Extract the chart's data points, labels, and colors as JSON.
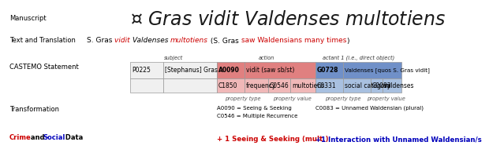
{
  "bg_color": "#ffffff",
  "manuscript_label": "Manuscript",
  "text_translation_label": "Text and Translation",
  "castemo_label": "CASTEMO Statement",
  "transformation_label": "Transformation",
  "crime_social_label": "Crime and Social Data",
  "latin_text_parts": [
    {
      "text": "S. Gras ",
      "color": "#000000",
      "style": "normal"
    },
    {
      "text": "vidit ",
      "color": "#cc0000",
      "style": "italic"
    },
    {
      "text": "Valdenses ",
      "color": "#000000",
      "style": "italic"
    },
    {
      "text": "multotiens",
      "color": "#cc0000",
      "style": "italic"
    },
    {
      "text": " (S. Gras ",
      "color": "#000000",
      "style": "normal"
    },
    {
      "text": "saw Waldensians many times",
      "color": "#cc0000",
      "style": "normal"
    },
    {
      "text": ")",
      "color": "#000000",
      "style": "normal"
    }
  ],
  "subject_label": "subject",
  "action_label": "action",
  "actant_label": "actant 1 (i.e., direct object)",
  "p0225": "P0225",
  "stephanus_gras": "[Stephanus] Gras",
  "a0090": "A0090",
  "vidit": "vidit (saw sb/st)",
  "g0728": "G0728",
  "valdenses_full": "Valdenses [quos S. Gras vidit]",
  "c1850": "C1850",
  "frequency": "frequency",
  "c0546": "C0546",
  "multotiens": "multotiens",
  "c0331": "C0331",
  "social_category": "social category",
  "c0083": "C0083",
  "valdenses_short": "valdenses",
  "prop_type": "property type",
  "prop_value": "property value",
  "red_color": "#e08080",
  "red_light": "#f0b8b8",
  "blue_color": "#7090c8",
  "blue_light": "#a8c0e0",
  "grey_color": "#f0f0f0",
  "transformation_left": "A0090 = Seeing & Seeking\nC0546 = Multiple Recurrence",
  "transformation_right": "C0083 = Unnamed Waldensian (plural)",
  "crime_text1": "+ 1 Seeing & Seeking (mult.)",
  "crime_text1_color": "#cc0000",
  "crime_text2": "+1 Interaction with Unnamed Waldensian/s",
  "crime_text2_color": "#0000bb",
  "manuscript_text": "S Gras vidit Valdenses multotiens",
  "label_fontsize": 6.0,
  "content_fontsize": 6.5,
  "table_fontsize": 5.5,
  "small_fontsize": 4.8,
  "crime_fontsize": 6.2
}
